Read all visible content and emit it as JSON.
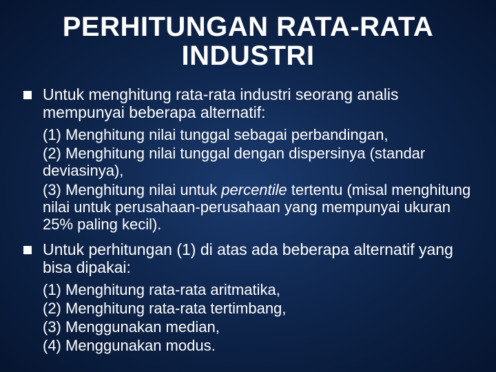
{
  "colors": {
    "bg_center": "#1a3a6e",
    "bg_mid": "#0d2348",
    "bg_edge": "#061530",
    "text": "#ffffff",
    "bullet": "#ffffff"
  },
  "typography": {
    "title_fontsize": 40,
    "lead_fontsize": 23,
    "sub_fontsize": 22,
    "font_family": "Arial"
  },
  "title": {
    "line1": "PERHITUNGAN RATA-RATA",
    "line2": "INDUSTRI"
  },
  "blocks": [
    {
      "lead": "Untuk menghitung rata-rata industri seorang analis mempunyai beberapa alternatif:",
      "subs": [
        "(1)  Menghitung nilai tunggal sebagai perbandingan,",
        "(2)  Menghitung nilai tunggal dengan dispersinya (standar deviasinya),",
        "(3)  Menghitung nilai untuk <span class=\"italic\">percentile</span> tertentu (misal menghitung nilai untuk perusahaan-perusahaan yang mempunyai ukuran 25% paling kecil)."
      ]
    },
    {
      "lead": "Untuk perhitungan (1) di atas ada beberapa alternatif yang bisa dipakai:",
      "subs": [
        "(1)  Menghitung rata-rata aritmatika,",
        "(2)  Menghitung rata-rata tertimbang,",
        "(3)  Menggunakan median,",
        "(4)  Menggunakan modus."
      ]
    }
  ]
}
